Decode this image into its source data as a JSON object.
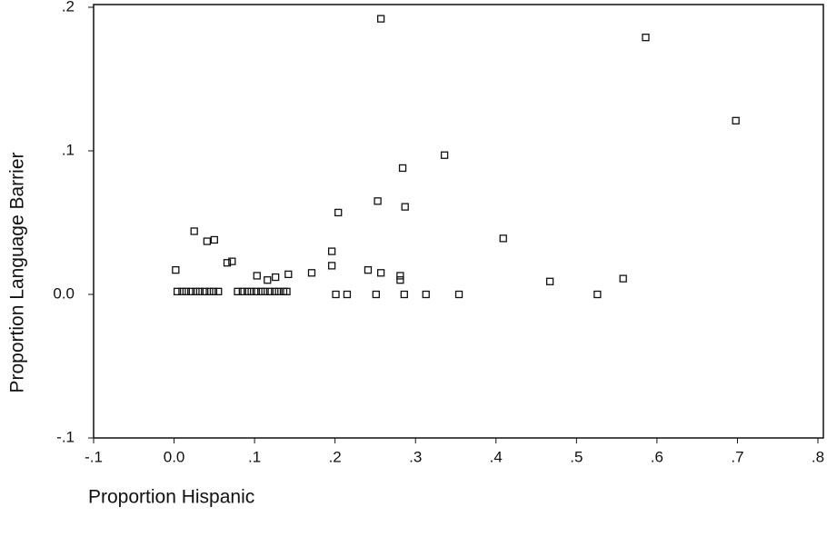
{
  "chart_data": {
    "type": "scatter",
    "xlabel": "Proportion Hispanic",
    "ylabel": "Proportion Language Barrier",
    "xlim": [
      -0.1,
      0.8
    ],
    "ylim": [
      -0.1,
      0.2
    ],
    "xticks": [
      {
        "value": -0.1,
        "label": "-.1"
      },
      {
        "value": 0,
        "label": "0.0"
      },
      {
        "value": 0.1,
        "label": ".1"
      },
      {
        "value": 0.2,
        "label": ".2"
      },
      {
        "value": 0.3,
        "label": ".3"
      },
      {
        "value": 0.4,
        "label": ".4"
      },
      {
        "value": 0.5,
        "label": ".5"
      },
      {
        "value": 0.6,
        "label": ".6"
      },
      {
        "value": 0.7,
        "label": ".7"
      },
      {
        "value": 0.8,
        "label": ".8"
      }
    ],
    "yticks": [
      {
        "value": -0.1,
        "label": "-.1"
      },
      {
        "value": 0,
        "label": "0.0"
      },
      {
        "value": 0.1,
        "label": ".1"
      },
      {
        "value": 0.2,
        "label": ".2"
      }
    ],
    "color": "#111111",
    "x": [
      0.257,
      0.586,
      0.698,
      0.336,
      0.284,
      0.253,
      0.287,
      0.204,
      0.025,
      0.041,
      0.05,
      0.409,
      0.066,
      0.072,
      0.196,
      0.002,
      0.196,
      0.171,
      0.142,
      0.103,
      0.126,
      0.116,
      0.241,
      0.257,
      0.281,
      0.281,
      0.467,
      0.558,
      0.004,
      0.01,
      0.015,
      0.021,
      0.027,
      0.032,
      0.038,
      0.044,
      0.049,
      0.055,
      0.079,
      0.085,
      0.091,
      0.096,
      0.102,
      0.108,
      0.113,
      0.119,
      0.125,
      0.13,
      0.136,
      0.14,
      0.201,
      0.215,
      0.251,
      0.286,
      0.313,
      0.354,
      0.526
    ],
    "y": [
      0.192,
      0.179,
      0.121,
      0.097,
      0.088,
      0.065,
      0.061,
      0.057,
      0.044,
      0.037,
      0.038,
      0.039,
      0.022,
      0.023,
      0.03,
      0.017,
      0.02,
      0.015,
      0.014,
      0.013,
      0.012,
      0.01,
      0.017,
      0.015,
      0.013,
      0.01,
      0.009,
      0.011,
      0.002,
      0.002,
      0.002,
      0.002,
      0.002,
      0.002,
      0.002,
      0.002,
      0.002,
      0.002,
      0.002,
      0.002,
      0.002,
      0.002,
      0.002,
      0.002,
      0.002,
      0.002,
      0.002,
      0.002,
      0.002,
      0.002,
      0,
      0,
      0,
      0,
      0,
      0,
      0
    ]
  }
}
